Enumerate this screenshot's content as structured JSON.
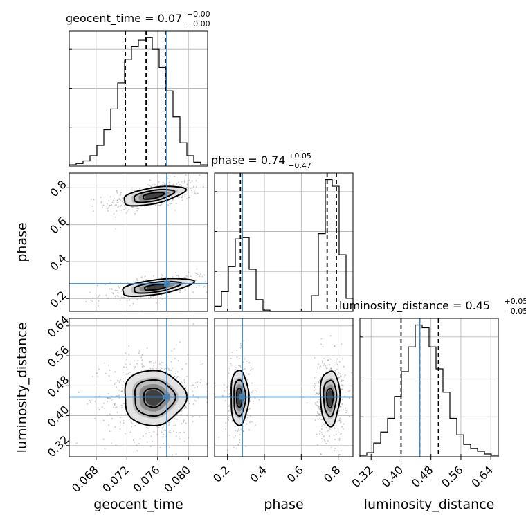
{
  "chart_data": {
    "type": "corner",
    "parameters": [
      "geocent_time",
      "phase",
      "luminosity_distance"
    ],
    "truths": {
      "geocent_time": 0.0772,
      "phase": 0.28,
      "luminosity_distance": 0.45
    },
    "titles": [
      {
        "param": "geocent_time",
        "main": "geocent_time = 0.07",
        "sup": "+0.00",
        "sub": "−0.00"
      },
      {
        "param": "phase",
        "main": "phase = 0.74",
        "sup": "+0.05",
        "sub": "−0.47"
      },
      {
        "param": "luminosity_distance",
        "main": "luminosity_distance = 0.45",
        "sup": "+0.05",
        "sub": "−0.05"
      }
    ],
    "axes": {
      "geocent_time": {
        "range": [
          0.0645,
          0.0825
        ],
        "ticks": [
          0.068,
          0.072,
          0.076,
          0.08
        ],
        "tick_labels": [
          "0.068",
          "0.072",
          "0.076",
          "0.080"
        ]
      },
      "phase": {
        "range": [
          0.13,
          0.88
        ],
        "ticks": [
          0.2,
          0.4,
          0.6,
          0.8
        ],
        "tick_labels": [
          "0.2",
          "0.4",
          "0.6",
          "0.8"
        ]
      },
      "luminosity_distance": {
        "range": [
          0.29,
          0.66
        ],
        "ticks": [
          0.32,
          0.4,
          0.48,
          0.56,
          0.64
        ],
        "tick_labels": [
          "0.32",
          "0.40",
          "0.48",
          "0.56",
          "0.64"
        ]
      }
    },
    "histograms": {
      "geocent_time": {
        "bins": [
          0.0645,
          0.0654,
          0.0663,
          0.0672,
          0.0681,
          0.069,
          0.0699,
          0.0708,
          0.0717,
          0.0726,
          0.0735,
          0.0744,
          0.0753,
          0.0762,
          0.0771,
          0.078,
          0.0789,
          0.0798,
          0.0807,
          0.0816,
          0.0825
        ],
        "counts": [
          1,
          2,
          4,
          8,
          16,
          28,
          44,
          64,
          82,
          92,
          97,
          99,
          90,
          76,
          58,
          38,
          18,
          8,
          3,
          1
        ],
        "quantiles": [
          0.0718,
          0.0745,
          0.077
        ]
      },
      "phase": {
        "bins": [
          0.13,
          0.1675,
          0.205,
          0.2425,
          0.28,
          0.3175,
          0.355,
          0.3925,
          0.43,
          0.4675,
          0.505,
          0.5425,
          0.58,
          0.6175,
          0.655,
          0.6925,
          0.73,
          0.7675,
          0.805,
          0.8425,
          0.88
        ],
        "counts": [
          4,
          15,
          34,
          55,
          56,
          32,
          9,
          1,
          0,
          0,
          0,
          0,
          0,
          0,
          12,
          59,
          100,
          95,
          43,
          10
        ],
        "quantiles": [
          0.27,
          0.74,
          0.79
        ]
      },
      "luminosity_distance": {
        "bins": [
          0.29,
          0.3085,
          0.327,
          0.3455,
          0.364,
          0.3825,
          0.401,
          0.4195,
          0.438,
          0.4565,
          0.475,
          0.4935,
          0.512,
          0.5305,
          0.549,
          0.5675,
          0.586,
          0.6045,
          0.623,
          0.6415,
          0.66
        ],
        "counts": [
          1,
          3,
          10,
          18,
          28,
          44,
          62,
          80,
          96,
          94,
          80,
          64,
          47,
          28,
          16,
          9,
          6,
          4,
          2,
          1
        ],
        "quantiles": [
          0.4,
          0.45,
          0.5
        ]
      }
    },
    "contours_2d": [
      {
        "x": "geocent_time",
        "y": "phase",
        "modes": [
          {
            "cx": 0.0754,
            "cy": 0.757,
            "sx": 0.0025,
            "sy": 0.033,
            "rho": 0.55,
            "w": 0.62
          },
          {
            "cx": 0.0758,
            "cy": 0.262,
            "sx": 0.0029,
            "sy": 0.03,
            "rho": 0.55,
            "w": 0.38
          }
        ]
      },
      {
        "x": "geocent_time",
        "y": "luminosity_distance",
        "modes": [
          {
            "cx": 0.0755,
            "cy": 0.448,
            "sx": 0.0025,
            "sy": 0.046,
            "rho": 0.0,
            "w": 1.0
          }
        ]
      },
      {
        "x": "phase",
        "y": "luminosity_distance",
        "modes": [
          {
            "cx": 0.265,
            "cy": 0.448,
            "sx": 0.03,
            "sy": 0.046,
            "rho": 0.0,
            "w": 0.38
          },
          {
            "cx": 0.755,
            "cy": 0.448,
            "sx": 0.033,
            "sy": 0.046,
            "rho": 0.0,
            "w": 0.62
          }
        ]
      }
    ],
    "grid": true
  }
}
